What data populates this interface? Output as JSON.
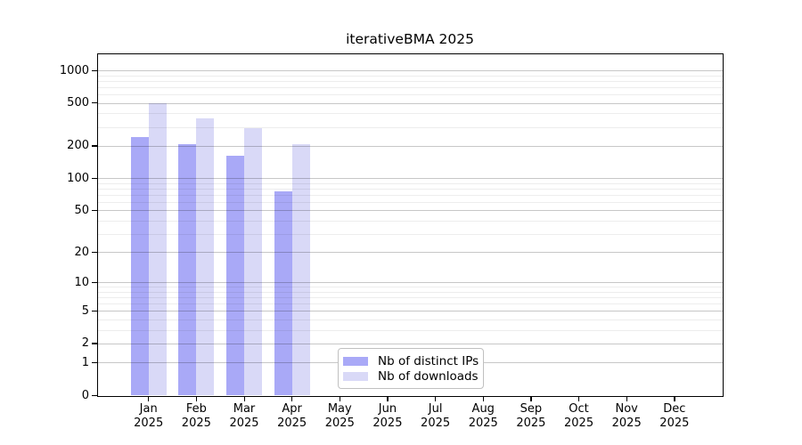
{
  "title": "iterativeBMA 2025",
  "colors": {
    "distinct_ips": "#a9a9f7",
    "downloads": "#d9d9f7",
    "axis": "#000000",
    "major_grid": "#c8c8c8",
    "minor_grid": "#ededed",
    "legend_border": "#c0c0c0",
    "background": "#ffffff"
  },
  "legend": {
    "items": [
      {
        "label": "Nb of distinct IPs",
        "color_key": "distinct_ips"
      },
      {
        "label": "Nb of downloads",
        "color_key": "downloads"
      }
    ]
  },
  "chart_data": {
    "type": "bar",
    "title": "iterativeBMA 2025",
    "xlabel": "",
    "ylabel": "",
    "categories": [
      "Jan 2025",
      "Feb 2025",
      "Mar 2025",
      "Apr 2025",
      "May 2025",
      "Jun 2025",
      "Jul 2025",
      "Aug 2025",
      "Sep 2025",
      "Oct 2025",
      "Nov 2025",
      "Dec 2025"
    ],
    "series": [
      {
        "name": "Nb of distinct IPs",
        "color_key": "distinct_ips",
        "values": [
          240,
          206,
          161,
          76,
          null,
          null,
          null,
          null,
          null,
          null,
          null,
          null
        ]
      },
      {
        "name": "Nb of downloads",
        "color_key": "downloads",
        "values": [
          500,
          356,
          289,
          208,
          null,
          null,
          null,
          null,
          null,
          null,
          null,
          null
        ]
      }
    ],
    "y_scale": "log10(1+x)",
    "ylim": [
      0,
      1000
    ],
    "y_ticks": [
      0,
      1,
      2,
      5,
      10,
      20,
      50,
      100,
      200,
      500,
      1000
    ],
    "y_minor_ticks": [
      3,
      4,
      6,
      7,
      8,
      9,
      30,
      40,
      60,
      70,
      80,
      90,
      300,
      400,
      600,
      700,
      800,
      900
    ],
    "grid": true,
    "legend_position": "lower center-left"
  }
}
